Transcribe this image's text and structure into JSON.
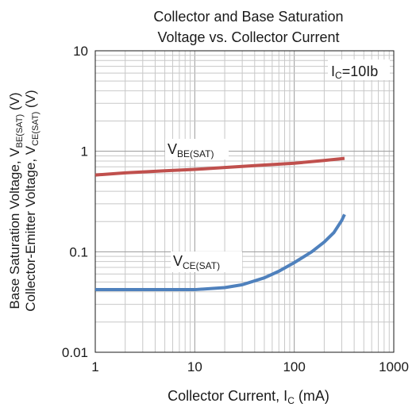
{
  "chart_data": {
    "type": "line",
    "title_line1": "Collector and Base Saturation",
    "title_line2": "Voltage vs. Collector Current",
    "xlabel": {
      "main": "Collector Current, I",
      "sub": "C",
      "tail": " (mA)"
    },
    "ylabel_line1": {
      "main": "Base Saturation Voltage, V",
      "sub": "BE(SAT)",
      "tail": " (V)"
    },
    "ylabel_line2": {
      "main": "Collector-Emitter Voltage, V",
      "sub": "CE(SAT)",
      "tail": " (V)"
    },
    "x_scale": "log",
    "y_scale": "log",
    "xlim": [
      1,
      1000
    ],
    "ylim": [
      0.01,
      10
    ],
    "x_ticks": [
      1,
      10,
      100,
      1000
    ],
    "x_tick_labels": [
      "1",
      "10",
      "100",
      "1000"
    ],
    "y_ticks": [
      0.01,
      0.1,
      1,
      10
    ],
    "y_tick_labels": [
      "0.01",
      "0.1",
      "1",
      "10"
    ],
    "grid": true,
    "annotation": {
      "main": "I",
      "sub": "C",
      "tail": "=10Ib"
    },
    "series": [
      {
        "label_main": "V",
        "label_sub": "BE(SAT)",
        "color": "#c0504d",
        "points": [
          [
            1,
            0.58
          ],
          [
            2,
            0.61
          ],
          [
            5,
            0.64
          ],
          [
            10,
            0.66
          ],
          [
            20,
            0.69
          ],
          [
            50,
            0.73
          ],
          [
            100,
            0.76
          ],
          [
            200,
            0.81
          ],
          [
            320,
            0.85
          ]
        ]
      },
      {
        "label_main": "V",
        "label_sub": "CE(SAT)",
        "color": "#4f81bd",
        "points": [
          [
            1,
            0.042
          ],
          [
            2,
            0.042
          ],
          [
            5,
            0.042
          ],
          [
            10,
            0.042
          ],
          [
            20,
            0.044
          ],
          [
            30,
            0.047
          ],
          [
            50,
            0.055
          ],
          [
            70,
            0.064
          ],
          [
            100,
            0.078
          ],
          [
            150,
            0.1
          ],
          [
            200,
            0.125
          ],
          [
            250,
            0.155
          ],
          [
            300,
            0.205
          ],
          [
            320,
            0.235
          ]
        ]
      }
    ]
  }
}
